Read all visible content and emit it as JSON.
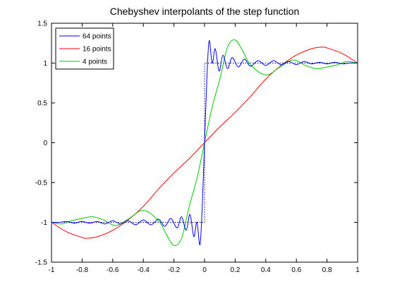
{
  "chart_data": {
    "type": "line",
    "title": "Chebyshev interpolants of the step function",
    "xlabel": "",
    "ylabel": "",
    "xlim": [
      -1,
      1
    ],
    "ylim": [
      -1.5,
      1.5
    ],
    "xticks": [
      -1,
      -0.8,
      -0.6,
      -0.4,
      -0.2,
      0,
      0.2,
      0.4,
      0.6,
      0.8,
      1
    ],
    "yticks": [
      -1.5,
      -1,
      -0.5,
      0,
      0.5,
      1,
      1.5
    ],
    "xtick_labels": [
      "-1",
      "-0.8",
      "-0.6",
      "-0.4",
      "-0.2",
      "0",
      "0.2",
      "0.4",
      "0.6",
      "0.8",
      "1"
    ],
    "ytick_labels": [
      "-1.5",
      "-1",
      "-0.5",
      "0",
      "0.5",
      "1",
      "1.5"
    ],
    "grid": false,
    "legend_position": "top-left",
    "series": [
      {
        "name": "64 points",
        "color": "#0000ff",
        "points": [
          [
            -1,
            -1
          ],
          [
            -0.95,
            -1.0
          ],
          [
            -0.9,
            -0.99
          ],
          [
            -0.85,
            -1.01
          ],
          [
            -0.8,
            -0.99
          ],
          [
            -0.75,
            -1.01
          ],
          [
            -0.7,
            -0.99
          ],
          [
            -0.65,
            -1.02
          ],
          [
            -0.6,
            -0.98
          ],
          [
            -0.55,
            -1.02
          ],
          [
            -0.5,
            -0.98
          ],
          [
            -0.45,
            -1.03
          ],
          [
            -0.4,
            -0.97
          ],
          [
            -0.35,
            -1.03
          ],
          [
            -0.3,
            -0.96
          ],
          [
            -0.26,
            -1.05
          ],
          [
            -0.22,
            -0.95
          ],
          [
            -0.18,
            -1.07
          ],
          [
            -0.15,
            -0.93
          ],
          [
            -0.12,
            -1.1
          ],
          [
            -0.095,
            -0.9
          ],
          [
            -0.07,
            -1.18
          ],
          [
            -0.05,
            -1.0
          ],
          [
            -0.03,
            -1.28
          ],
          [
            -0.015,
            -0.8
          ],
          [
            0,
            0
          ],
          [
            0.015,
            0.8
          ],
          [
            0.03,
            1.28
          ],
          [
            0.05,
            1.0
          ],
          [
            0.07,
            1.18
          ],
          [
            0.095,
            0.9
          ],
          [
            0.12,
            1.1
          ],
          [
            0.15,
            0.93
          ],
          [
            0.18,
            1.07
          ],
          [
            0.22,
            0.95
          ],
          [
            0.26,
            1.05
          ],
          [
            0.3,
            0.96
          ],
          [
            0.35,
            1.03
          ],
          [
            0.4,
            0.97
          ],
          [
            0.45,
            1.03
          ],
          [
            0.5,
            0.98
          ],
          [
            0.55,
            1.02
          ],
          [
            0.6,
            0.98
          ],
          [
            0.65,
            1.02
          ],
          [
            0.7,
            0.99
          ],
          [
            0.75,
            1.01
          ],
          [
            0.8,
            0.99
          ],
          [
            0.85,
            1.01
          ],
          [
            0.9,
            0.99
          ],
          [
            0.95,
            1.0
          ],
          [
            1,
            1
          ]
        ]
      },
      {
        "name": "16 points",
        "color": "#ff0000",
        "points": [
          [
            -1,
            -1
          ],
          [
            -0.9,
            -1.12
          ],
          [
            -0.8,
            -1.19
          ],
          [
            -0.77,
            -1.2
          ],
          [
            -0.7,
            -1.18
          ],
          [
            -0.6,
            -1.1
          ],
          [
            -0.5,
            -0.97
          ],
          [
            -0.4,
            -0.8
          ],
          [
            -0.3,
            -0.58
          ],
          [
            -0.2,
            -0.38
          ],
          [
            -0.1,
            -0.2
          ],
          [
            0,
            0
          ],
          [
            0.1,
            0.2
          ],
          [
            0.2,
            0.38
          ],
          [
            0.3,
            0.58
          ],
          [
            0.4,
            0.8
          ],
          [
            0.5,
            0.97
          ],
          [
            0.6,
            1.1
          ],
          [
            0.7,
            1.18
          ],
          [
            0.77,
            1.2
          ],
          [
            0.8,
            1.19
          ],
          [
            0.9,
            1.12
          ],
          [
            1,
            1
          ]
        ]
      },
      {
        "name": "4 points",
        "color": "#00cc00",
        "points": [
          [
            -1,
            -1
          ],
          [
            -0.93,
            -1.02
          ],
          [
            -0.87,
            -0.98
          ],
          [
            -0.8,
            -0.95
          ],
          [
            -0.73,
            -0.93
          ],
          [
            -0.66,
            -0.97
          ],
          [
            -0.58,
            -1.04
          ],
          [
            -0.5,
            -0.96
          ],
          [
            -0.4,
            -0.85
          ],
          [
            -0.3,
            -0.98
          ],
          [
            -0.25,
            -1.15
          ],
          [
            -0.2,
            -1.29
          ],
          [
            -0.15,
            -1.2
          ],
          [
            -0.1,
            -0.8
          ],
          [
            -0.05,
            -0.45
          ],
          [
            0,
            0
          ],
          [
            0.05,
            0.45
          ],
          [
            0.1,
            0.8
          ],
          [
            0.15,
            1.2
          ],
          [
            0.2,
            1.29
          ],
          [
            0.25,
            1.15
          ],
          [
            0.3,
            0.98
          ],
          [
            0.4,
            0.85
          ],
          [
            0.5,
            0.96
          ],
          [
            0.58,
            1.04
          ],
          [
            0.66,
            0.97
          ],
          [
            0.73,
            0.93
          ],
          [
            0.8,
            0.95
          ],
          [
            0.87,
            0.98
          ],
          [
            0.93,
            1.02
          ],
          [
            1,
            1
          ]
        ]
      }
    ],
    "reference": {
      "color": "#000080",
      "style": "dotted",
      "step_x": [
        -1,
        0,
        0,
        1
      ],
      "step_y": [
        -1,
        -1,
        1,
        1
      ]
    }
  }
}
